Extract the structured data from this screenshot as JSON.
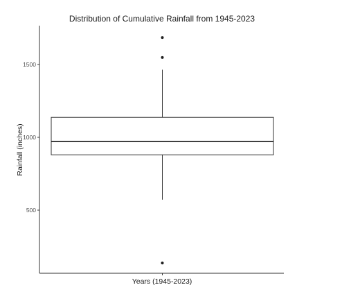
{
  "chart_data": {
    "type": "boxplot",
    "title": "Distribution of Cumulative Rainfall from 1945-2023",
    "xlabel": "Years (1945-2023)",
    "ylabel": "Rainfall (inches)",
    "ylim": [
      100,
      1800
    ],
    "yticks": [
      500,
      1000,
      1500
    ],
    "grid": false,
    "box": {
      "q1": 880,
      "median": 972,
      "q3": 1137,
      "whisker_low": 572,
      "whisker_high": 1464
    },
    "outliers": [
      1685,
      1548,
      137
    ]
  }
}
